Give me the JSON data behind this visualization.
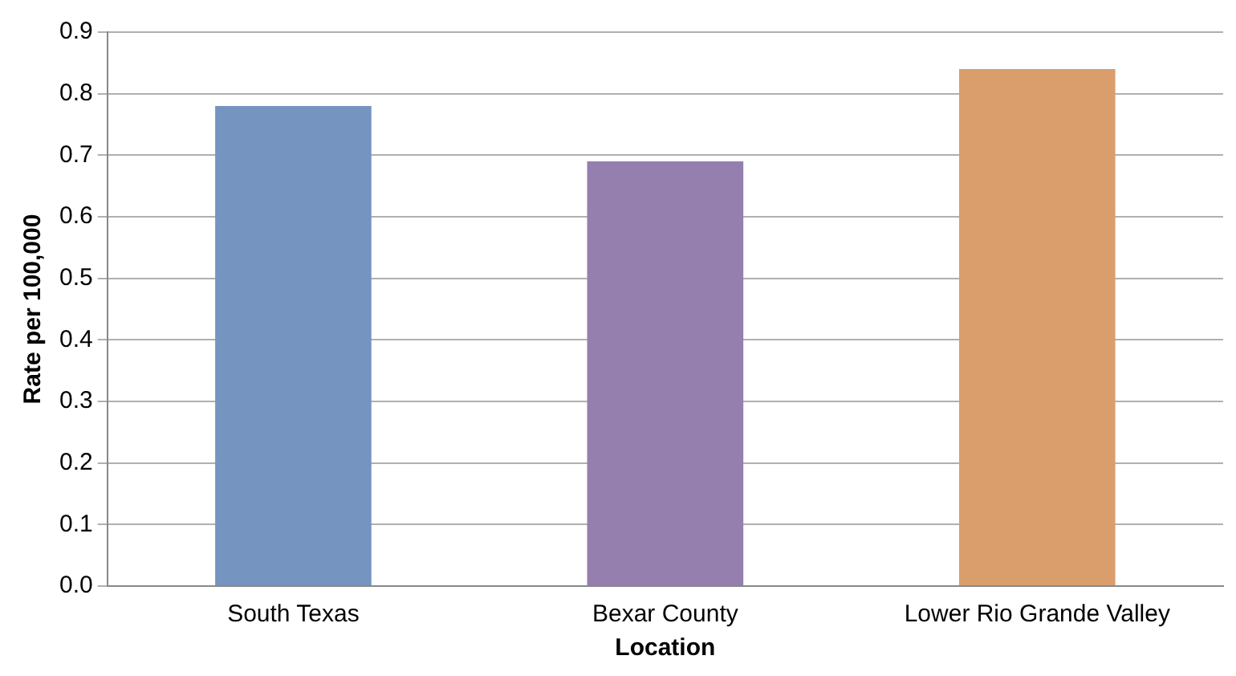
{
  "chart_data": {
    "type": "bar",
    "xlabel": "Location",
    "ylabel": "Rate per 100,000",
    "categories": [
      "South Texas",
      "Bexar County",
      "Lower Rio Grande Valley"
    ],
    "values": [
      0.78,
      0.69,
      0.84
    ],
    "colors": [
      "#7594bf",
      "#957fae",
      "#d99e6c"
    ],
    "ylim": [
      0,
      0.9
    ],
    "yticks": [
      {
        "value": 0,
        "label": "0.0"
      },
      0.1,
      0.2,
      0.3,
      0.4,
      0.5,
      0.6,
      0.7,
      0.8,
      0.9
    ],
    "grid": "y",
    "legend": false
  }
}
